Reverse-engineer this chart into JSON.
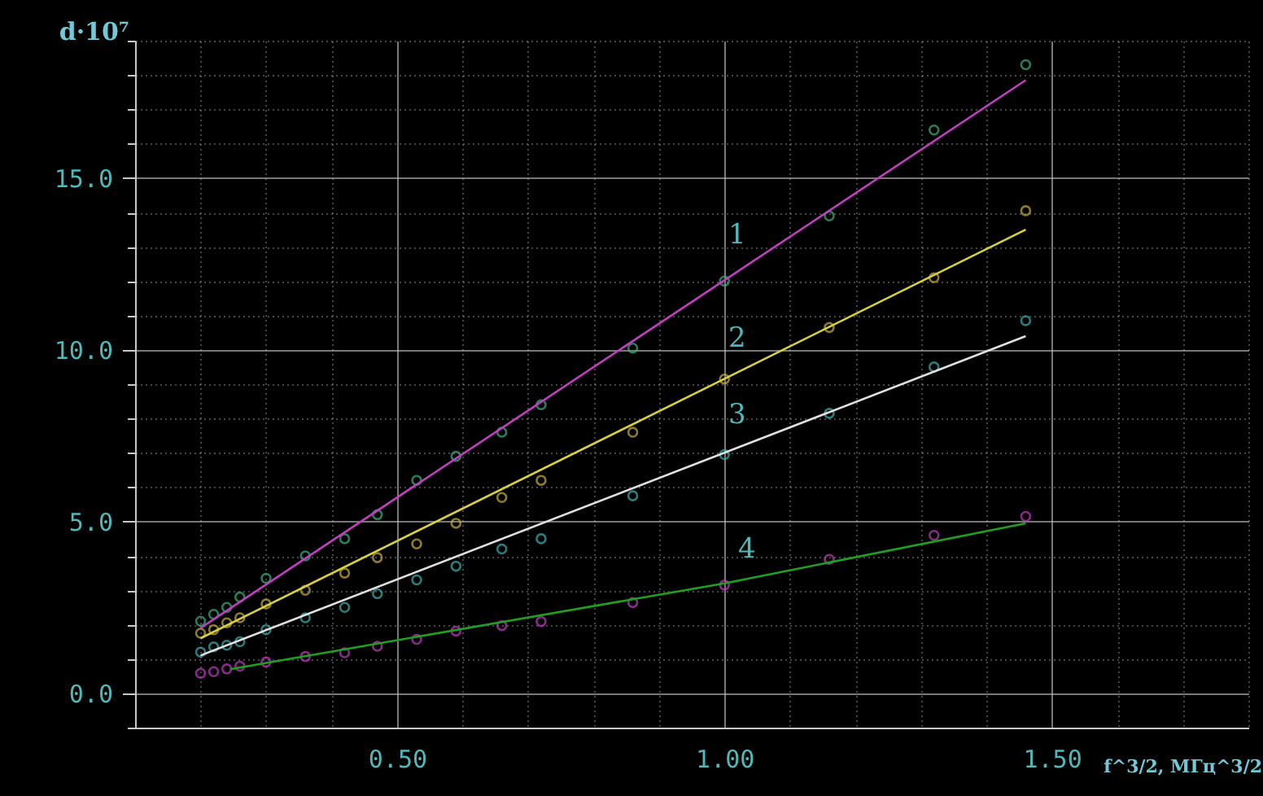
{
  "chart_data": {
    "type": "scatter",
    "xlabel": "f^3/2, МГц^3/2",
    "ylabel": "d·10⁷",
    "xlim": [
      0.1,
      1.8
    ],
    "ylim": [
      -1,
      19
    ],
    "xticks": [
      {
        "value": 0.2,
        "label": null
      },
      {
        "value": 0.3,
        "label": null
      },
      {
        "value": 0.4,
        "label": null
      },
      {
        "value": 0.5,
        "label": "0.50"
      },
      {
        "value": 0.6,
        "label": null
      },
      {
        "value": 0.7,
        "label": null
      },
      {
        "value": 0.8,
        "label": null
      },
      {
        "value": 0.9,
        "label": null
      },
      {
        "value": 1.0,
        "label": "1.00"
      },
      {
        "value": 1.1,
        "label": null
      },
      {
        "value": 1.2,
        "label": null
      },
      {
        "value": 1.3,
        "label": null
      },
      {
        "value": 1.4,
        "label": null
      },
      {
        "value": 1.5,
        "label": "1.50"
      },
      {
        "value": 1.6,
        "label": null
      },
      {
        "value": 1.7,
        "label": null
      },
      {
        "value": 1.8,
        "label": null
      }
    ],
    "yticks": [
      {
        "value": -1,
        "label": null
      },
      {
        "value": 0,
        "label": "0.0"
      },
      {
        "value": 1,
        "label": null
      },
      {
        "value": 2,
        "label": null
      },
      {
        "value": 3,
        "label": null
      },
      {
        "value": 4,
        "label": null
      },
      {
        "value": 5,
        "label": "5.0"
      },
      {
        "value": 6,
        "label": null
      },
      {
        "value": 7,
        "label": null
      },
      {
        "value": 8,
        "label": null
      },
      {
        "value": 9,
        "label": null
      },
      {
        "value": 10,
        "label": "10.0"
      },
      {
        "value": 11,
        "label": null
      },
      {
        "value": 12,
        "label": null
      },
      {
        "value": 13,
        "label": null
      },
      {
        "value": 14,
        "label": null
      },
      {
        "value": 15,
        "label": "15.0"
      },
      {
        "value": 16,
        "label": null
      },
      {
        "value": 17,
        "label": null
      },
      {
        "value": 18,
        "label": null
      },
      {
        "value": 19,
        "label": null
      }
    ],
    "grid": true,
    "series": [
      {
        "marker": "circle",
        "color": "#40b080",
        "x": [
          0.2,
          0.22,
          0.24,
          0.26,
          0.3,
          0.36,
          0.42,
          0.47,
          0.53,
          0.59,
          0.66,
          0.72,
          0.86,
          1.0,
          1.16,
          1.32,
          1.46
        ],
        "values": [
          2.1,
          2.3,
          2.5,
          2.8,
          3.35,
          4.0,
          4.5,
          5.2,
          6.2,
          6.9,
          7.6,
          8.4,
          10.05,
          12.0,
          13.9,
          16.4,
          18.3
        ]
      },
      {
        "marker": "circle",
        "color": "#c8b040",
        "x": [
          0.2,
          0.22,
          0.24,
          0.26,
          0.3,
          0.36,
          0.42,
          0.47,
          0.53,
          0.59,
          0.66,
          0.72,
          0.86,
          1.0,
          1.16,
          1.32,
          1.46
        ],
        "values": [
          1.75,
          1.85,
          2.05,
          2.2,
          2.6,
          3.0,
          3.5,
          3.95,
          4.35,
          4.95,
          5.7,
          6.2,
          7.6,
          9.15,
          10.65,
          12.1,
          14.05
        ]
      },
      {
        "marker": "circle",
        "color": "#40b0b0",
        "x": [
          0.2,
          0.22,
          0.24,
          0.26,
          0.3,
          0.36,
          0.42,
          0.47,
          0.53,
          0.59,
          0.66,
          0.72,
          0.86,
          1.0,
          1.16,
          1.32,
          1.46
        ],
        "values": [
          1.2,
          1.35,
          1.4,
          1.5,
          1.85,
          2.2,
          2.5,
          2.9,
          3.3,
          3.7,
          4.2,
          4.5,
          5.75,
          6.95,
          8.15,
          9.5,
          10.85
        ]
      },
      {
        "marker": "circle",
        "color": "#c040c0",
        "x": [
          0.2,
          0.22,
          0.24,
          0.26,
          0.3,
          0.36,
          0.42,
          0.47,
          0.53,
          0.59,
          0.66,
          0.72,
          0.86,
          1.0,
          1.16,
          1.32,
          1.46
        ],
        "values": [
          0.58,
          0.63,
          0.71,
          0.79,
          0.91,
          1.07,
          1.18,
          1.37,
          1.57,
          1.81,
          1.97,
          2.09,
          2.64,
          3.15,
          3.9,
          4.6,
          5.15
        ]
      },
      {
        "type": "line",
        "name": "1",
        "marker": "none",
        "line_style": "solid",
        "color": "#c040c0",
        "x": [
          0.2,
          1.46
        ],
        "values": [
          1.9,
          17.85
        ]
      },
      {
        "type": "line",
        "name": "2",
        "marker": "none",
        "line_style": "solid",
        "color": "#d8d040",
        "x": [
          0.2,
          1.46
        ],
        "values": [
          1.6,
          13.5
        ]
      },
      {
        "type": "line",
        "name": "3",
        "marker": "none",
        "line_style": "solid",
        "color": "#e0e0e0",
        "x": [
          0.2,
          1.46
        ],
        "values": [
          1.1,
          10.4
        ]
      },
      {
        "type": "line",
        "name": "4",
        "marker": "none",
        "line_style": "solid",
        "color": "#20a020",
        "x": [
          0.245,
          1.0,
          1.46
        ],
        "values": [
          0.7,
          3.2,
          4.95
        ]
      }
    ]
  }
}
